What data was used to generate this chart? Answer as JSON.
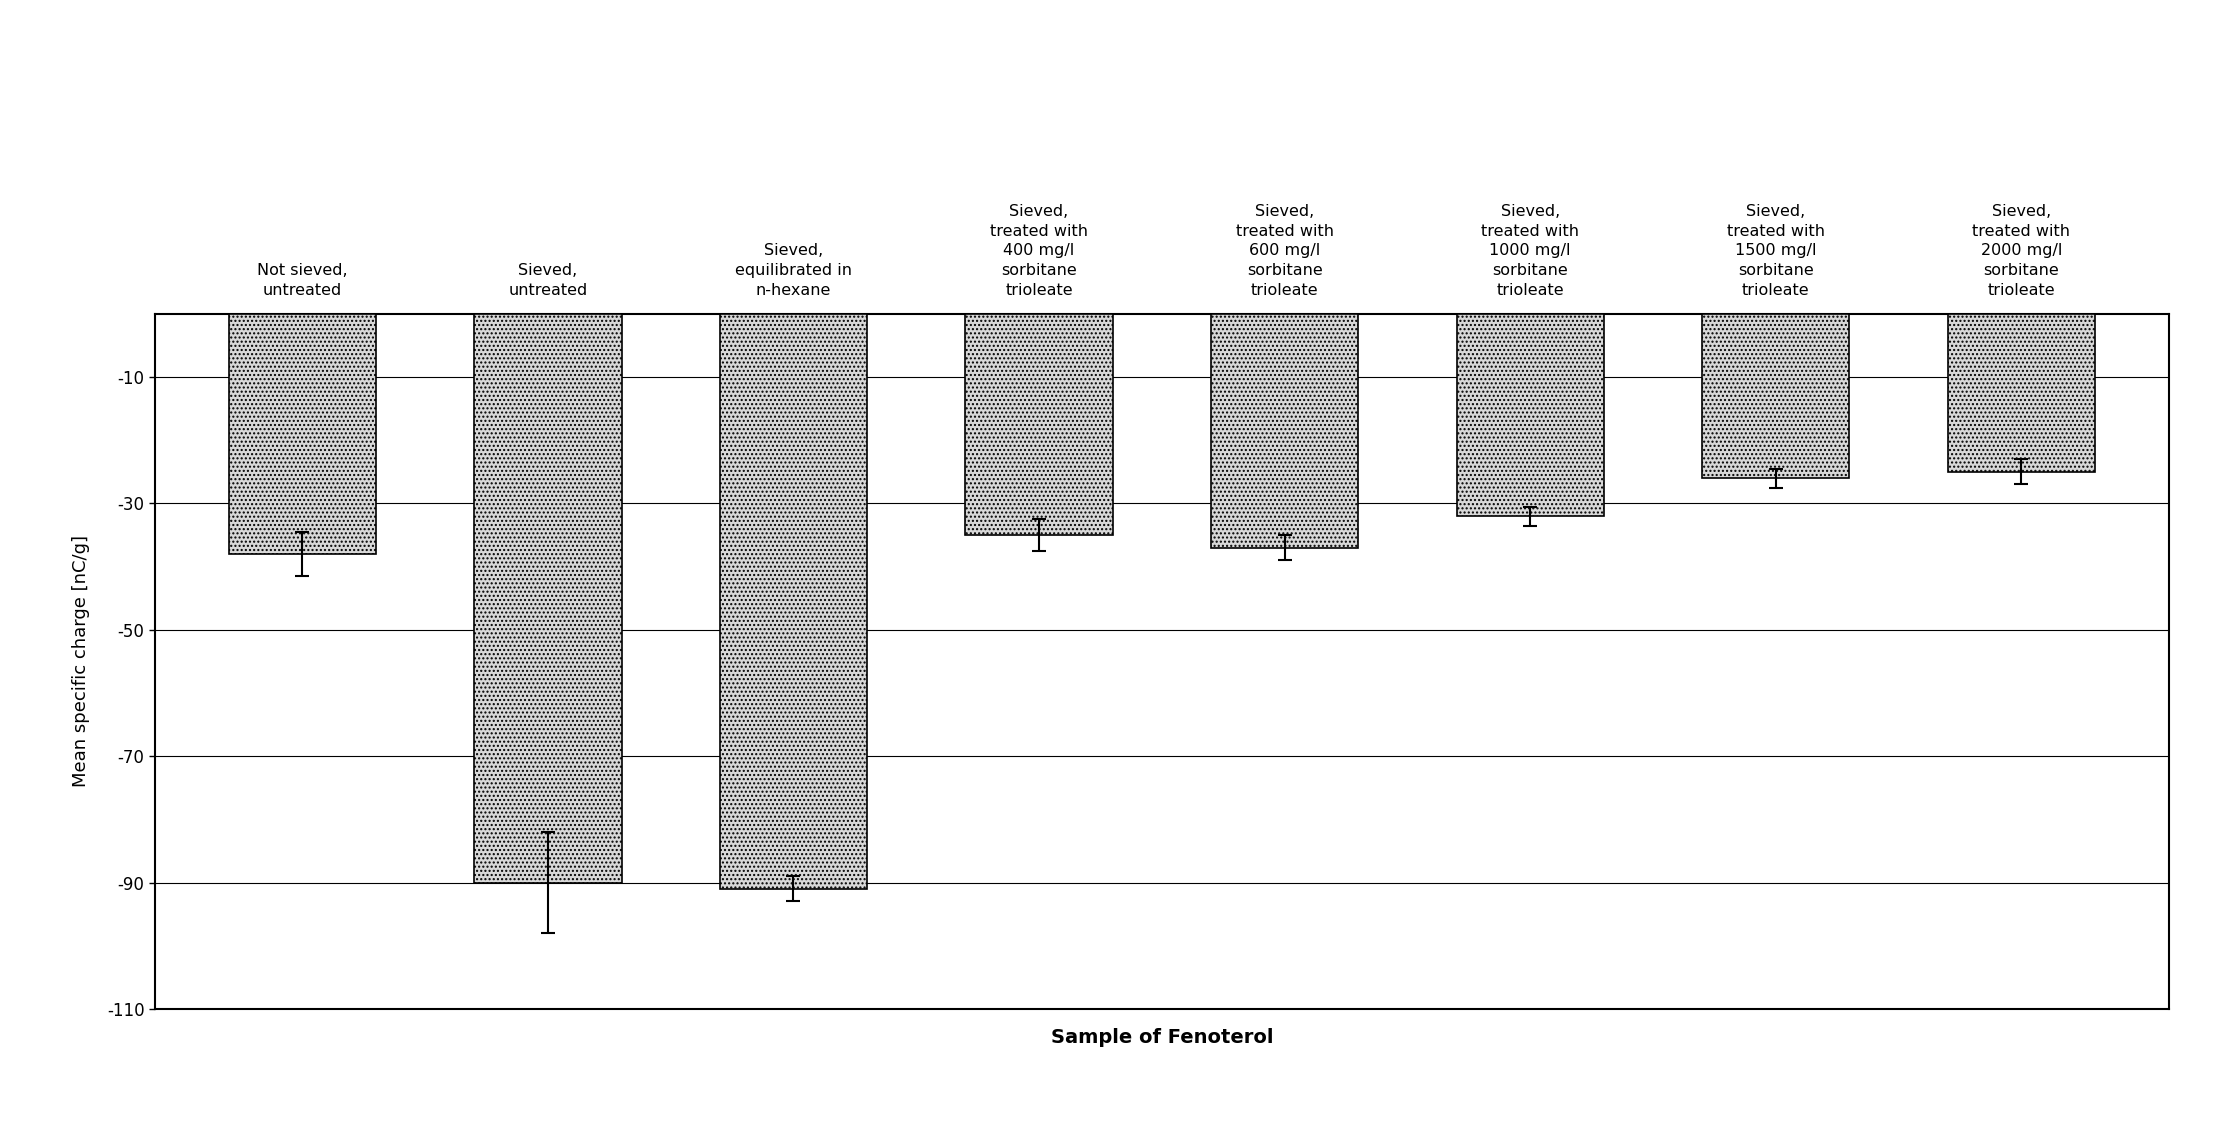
{
  "categories": [
    "Not sieved,\nuntreated",
    "Sieved,\nuntreated",
    "Sieved,\nequilibrated in\nn-hexane",
    "Sieved,\ntreated with\n400 mg/l\nsorbitane\ntrioleate",
    "Sieved,\ntreated with\n600 mg/l\nsorbitane\ntrioleate",
    "Sieved,\ntreated with\n1000 mg/l\nsorbitane\ntrioleate",
    "Sieved,\ntreated with\n1500 mg/l\nsorbitane\ntrioleate",
    "Sieved,\ntreated with\n2000 mg/l\nsorbitane\ntrioleate"
  ],
  "values": [
    -38,
    -90,
    -91,
    -35,
    -37,
    -32,
    -26,
    -25
  ],
  "errors": [
    3.5,
    8.0,
    2.0,
    2.5,
    2.0,
    1.5,
    1.5,
    2.0
  ],
  "bar_color": "#d8d8d8",
  "bar_edgecolor": "#000000",
  "bar_hatch": "....",
  "ylabel": "Mean specific charge [nC/g]",
  "xlabel": "Sample of Fenoterol",
  "ylim": [
    -110,
    0
  ],
  "yticks": [
    -110,
    -90,
    -70,
    -50,
    -30,
    -10
  ],
  "background_color": "#ffffff",
  "grid_color": "#000000",
  "ylabel_fontsize": 13,
  "xlabel_fontsize": 14,
  "tick_fontsize": 12,
  "label_fontsize": 11.5
}
